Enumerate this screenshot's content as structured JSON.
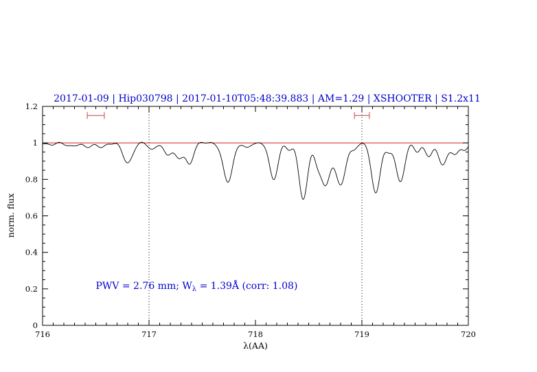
{
  "colors": {
    "title": "#0000cd",
    "annotation": "#0000cd",
    "continuum": "#cc0000",
    "marker": "#cc5555",
    "spectrum": "#000000",
    "axis": "#000000"
  },
  "chart_data": {
    "type": "line",
    "title": "2017-01-09 | Hip030798 | 2017-01-10T05:48:39.883 | AM=1.29 | XSHOOTER | S1.2x11",
    "xlabel": "λ(AA)",
    "ylabel": "norm. flux",
    "xlim": [
      716,
      720
    ],
    "ylim": [
      0,
      1.2
    ],
    "xticks": [
      716,
      717,
      718,
      719,
      720
    ],
    "xtick_labels": [
      "716",
      "717",
      "718",
      "719",
      "720"
    ],
    "yticks": [
      0,
      0.2,
      0.4,
      0.6,
      0.8,
      1,
      1.2
    ],
    "ytick_labels": [
      "0",
      "0.2",
      "0.4",
      "0.6",
      "0.8",
      "1",
      "1.2"
    ],
    "minor_x_step": 0.1,
    "minor_y_step": 0.05,
    "grid": "off",
    "dotted_vlines": [
      717,
      719
    ],
    "continuum_y": 1.0,
    "range_markers": [
      {
        "x1": 716.42,
        "x2": 716.58,
        "y": 1.15
      },
      {
        "x1": 718.93,
        "x2": 719.07,
        "y": 1.15
      }
    ],
    "annotation": {
      "text": "PWV = 2.76 mm; Wλ = 1.39Å (corr: 1.08)",
      "pre": "PWV = 2.76 mm; W",
      "sub": "λ",
      "post": " = 1.39Å (corr: 1.08)",
      "x": 716.5,
      "y": 0.2
    },
    "series_note": "telluric absorption spectrum, normalized flux vs wavelength; lines below given as gaussian components (c=center AA, d=depth, s=sigma AA)",
    "absorption_lines": [
      {
        "c": 716.08,
        "d": 0.01,
        "s": 0.04
      },
      {
        "c": 716.28,
        "d": 0.018,
        "s": 0.05
      },
      {
        "c": 716.42,
        "d": 0.02,
        "s": 0.04
      },
      {
        "c": 716.55,
        "d": 0.025,
        "s": 0.04
      },
      {
        "c": 716.8,
        "d": 0.11,
        "s": 0.045
      },
      {
        "c": 717.03,
        "d": 0.035,
        "s": 0.035
      },
      {
        "c": 717.17,
        "d": 0.065,
        "s": 0.035
      },
      {
        "c": 717.28,
        "d": 0.085,
        "s": 0.04
      },
      {
        "c": 717.38,
        "d": 0.115,
        "s": 0.035
      },
      {
        "c": 717.74,
        "d": 0.215,
        "s": 0.045
      },
      {
        "c": 717.92,
        "d": 0.03,
        "s": 0.03
      },
      {
        "c": 718.17,
        "d": 0.2,
        "s": 0.04
      },
      {
        "c": 718.32,
        "d": 0.04,
        "s": 0.03
      },
      {
        "c": 718.45,
        "d": 0.31,
        "s": 0.04
      },
      {
        "c": 718.58,
        "d": 0.09,
        "s": 0.03
      },
      {
        "c": 718.66,
        "d": 0.23,
        "s": 0.045
      },
      {
        "c": 718.8,
        "d": 0.23,
        "s": 0.045
      },
      {
        "c": 718.92,
        "d": 0.04,
        "s": 0.03
      },
      {
        "c": 719.13,
        "d": 0.28,
        "s": 0.04
      },
      {
        "c": 719.25,
        "d": 0.05,
        "s": 0.03
      },
      {
        "c": 719.36,
        "d": 0.215,
        "s": 0.04
      },
      {
        "c": 719.52,
        "d": 0.05,
        "s": 0.03
      },
      {
        "c": 719.63,
        "d": 0.07,
        "s": 0.035
      },
      {
        "c": 719.76,
        "d": 0.12,
        "s": 0.04
      },
      {
        "c": 719.88,
        "d": 0.065,
        "s": 0.035
      },
      {
        "c": 719.97,
        "d": 0.035,
        "s": 0.03
      }
    ]
  }
}
